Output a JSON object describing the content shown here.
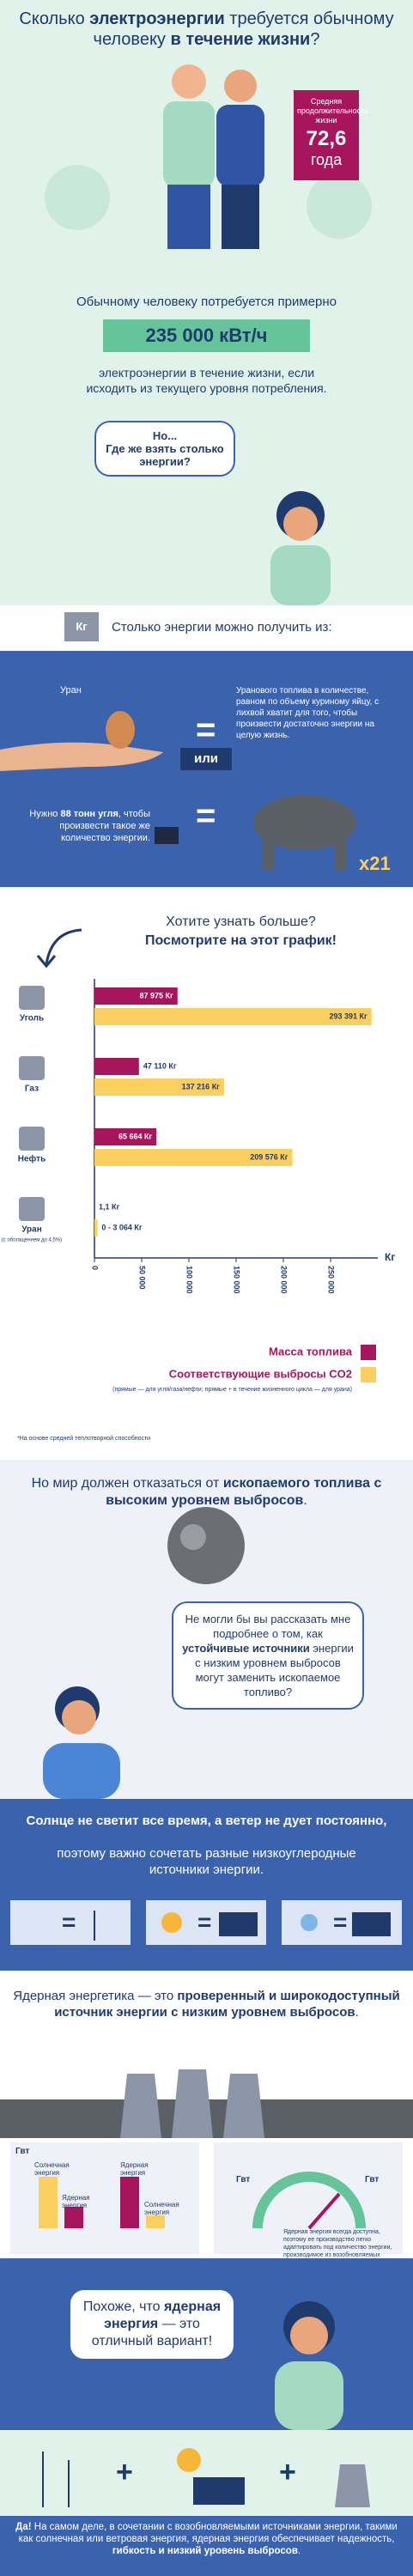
{
  "hero": {
    "title_parts": [
      "Сколько ",
      "электроэнергии",
      " требуется обычному человеку ",
      "в течение жизни",
      "?"
    ]
  },
  "lifespan": {
    "label": "Средняя продолжительность жизни",
    "value": "72,6",
    "unit": "года"
  },
  "need": {
    "intro": "Обычному человеку потребуется примерно",
    "amount": "235 000 кВт/ч",
    "outro": "электроэнергии в течение жизни, если исходить из текущего уровня потребления."
  },
  "bubble1": {
    "line1": "Но...",
    "line2": "Где же взять столько энергии?"
  },
  "sources": {
    "icon": "Кг",
    "heading": "Столько энергии можно получить из:",
    "uranium_label": "Уран",
    "equals": "=",
    "uranium_text": "Уранового топлива в количестве, равном по объему куриному яйцу, с лихвой хватит для того, чтобы произвести достаточно энергии на целую жизнь.",
    "or": "или",
    "coal_text_parts": [
      "Нужно ",
      "88 тонн угля",
      ", чтобы произвести такое же количество энергии."
    ],
    "multiplier": "x21"
  },
  "chart_intro": {
    "line1": "Хотите узнать больше?",
    "line2": "Посмотрите на этот график!"
  },
  "chart_data": {
    "type": "bar",
    "orientation": "horizontal",
    "categories": [
      "Уголь",
      "Газ",
      "Нефть",
      "Уран"
    ],
    "category_notes": [
      null,
      null,
      null,
      "(с обогащением до 4,5%)"
    ],
    "series": [
      {
        "name": "Масса топлива",
        "color": "#a8155f",
        "values": [
          87975,
          47110,
          65664,
          1.1
        ],
        "value_labels": [
          "87 975 Кг",
          "47 110 Кг",
          "65 664 Кг",
          "1,1 Кг"
        ]
      },
      {
        "name": "Соответствующие выбросы CO2",
        "color": "#fbcf5f",
        "values": [
          293391,
          137216,
          209576,
          3064
        ],
        "value_labels": [
          "293 391 Кг",
          "137 216 Кг",
          "209 576 Кг",
          "0 - 3 064 Кг"
        ]
      }
    ],
    "xlabel": "Кг",
    "xlim": [
      0,
      300000
    ],
    "xticks": [
      0,
      {
        "value": 50000,
        "label": "50 000"
      },
      {
        "value": 100000,
        "label": "100 000"
      },
      {
        "value": 150000,
        "label": "150 000"
      },
      {
        "value": 200000,
        "label": "200 000"
      },
      {
        "value": 250000,
        "label": "250 000"
      }
    ],
    "legend_note": "(прямые — для угля/газа/нефти; прямые + в течение жизненного цикла — для урана)",
    "footnote": "*На основе средней теплотворной способности"
  },
  "fossil": {
    "heading_parts": [
      "Но мир должен отказаться от ",
      "ископаемого топлива с высоким уровнем выбросов",
      "."
    ]
  },
  "bubble2": {
    "parts": [
      "Не могли бы вы рассказать мне подробнее о том, как ",
      "устойчивые источники",
      " энергии с низким уровнем выбросов могут заменить ископаемое топливо?"
    ]
  },
  "mix": {
    "bold": "Солнце не светит все время, а ветер не дует постоянно,",
    "rest": "поэтому важно сочетать разные низкоуглеродные источники энергии."
  },
  "nuclear": {
    "parts": [
      "Ядерная энергетика — это ",
      "проверенный и широкодоступный источник энергии с низким уровнем выбросов",
      "."
    ]
  },
  "comparison": {
    "unit": "Гвт",
    "solar": "Солнечная энергия",
    "nuclear": "Ядерная энергия",
    "gauge_text": "Ядерная энергия всегда доступна, поэтому ее производство легко адаптировать под количество энергии, производимое из возобновляемых источников."
  },
  "bubble3": {
    "parts": [
      "Похоже, что ",
      "ядерная энергия",
      " — это отличный вариант!"
    ]
  },
  "plus": "+",
  "conclusion": {
    "parts": [
      "Да!",
      " На самом деле, в сочетании с возобновляемыми источниками энергии, такими как солнечная или ветровая энергия, ядерная энергия обеспечивает надежность, ",
      "гибкость и низкий уровень выбросов",
      "."
    ]
  }
}
